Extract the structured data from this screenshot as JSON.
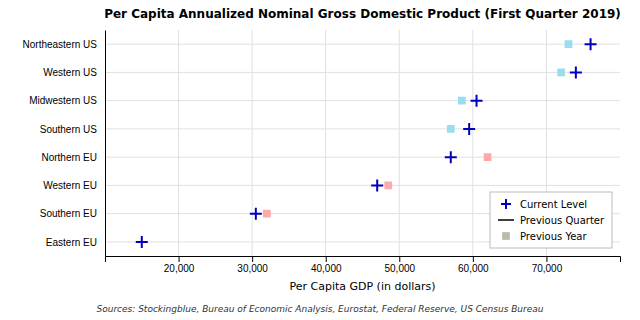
{
  "chart_data": {
    "type": "scatter",
    "title": "Per Capita Annualized Nominal Gross Domestic Product (First Quarter 2019)",
    "xlabel": "Per Capita GDP (in dollars)",
    "annotations": [
      "Sources: Stockingblue, Bureau of Economic Analysis, Eurostat, Federal Reserve, US Census Bureau"
    ],
    "orientation": "horizontal",
    "categories": [
      "Northeastern US",
      "Western US",
      "Midwestern US",
      "Southern US",
      "Northern EU",
      "Western EU",
      "Southern EU",
      "Eastern EU"
    ],
    "series": [
      {
        "name": "Current Level",
        "type": "scatter",
        "marker": "plus",
        "color": "#0000bb",
        "values": [
          76000,
          74000,
          60500,
          59500,
          57000,
          47000,
          30500,
          15000
        ]
      },
      {
        "name": "Previous Quarter",
        "type": "line",
        "line_style": "solid",
        "color": "#000000",
        "values": [
          null,
          null,
          null,
          null,
          null,
          null,
          null,
          null
        ]
      },
      {
        "name": "Previous Year",
        "type": "scatter",
        "marker": "square",
        "color": "#bbbbaa",
        "colors": [
          "#99ddee",
          "#99ddee",
          "#99ddee",
          "#99ddee",
          "#ffaaaa",
          "#ffaaaa",
          "#ffaaaa",
          "#ffaaaa"
        ],
        "values": [
          73000,
          72000,
          58500,
          57000,
          62000,
          48500,
          32000,
          null
        ]
      }
    ],
    "xlim": [
      10000,
      80000
    ],
    "xticks": [
      {
        "value": 20000,
        "label": "20,000"
      },
      {
        "value": 30000,
        "label": "30,000"
      },
      {
        "value": 40000,
        "label": "40,000"
      },
      {
        "value": 50000,
        "label": "50,000"
      },
      {
        "value": 60000,
        "label": "60,000"
      },
      {
        "value": 70000,
        "label": "70,000"
      }
    ],
    "grid": true,
    "legend": "lower right"
  }
}
